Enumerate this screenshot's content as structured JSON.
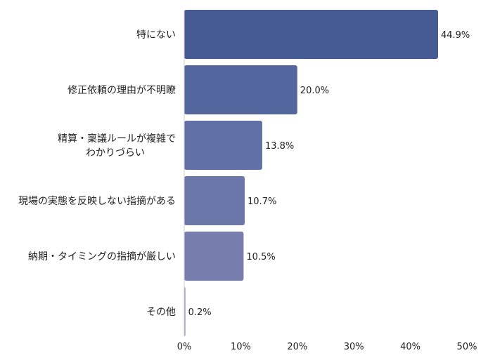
{
  "chart_data": {
    "type": "bar",
    "orientation": "horizontal",
    "title": "",
    "xlabel": "",
    "ylabel": "",
    "categories": [
      [
        "特にない"
      ],
      [
        "修正依頼の理由が不明瞭"
      ],
      [
        "精算・稟議ルールが複雑で",
        "わかりづらい"
      ],
      [
        "現場の実態を反映しない指摘がある"
      ],
      [
        "納期・タイミングの指摘が厳しい"
      ],
      [
        "その他"
      ]
    ],
    "values": [
      44.9,
      20.0,
      13.8,
      10.7,
      10.5,
      0.2
    ],
    "value_labels": [
      "44.9%",
      "20.0%",
      "13.8%",
      "10.7%",
      "10.5%",
      "0.2%"
    ],
    "xlim": [
      0,
      50
    ],
    "xticks": [
      0,
      10,
      20,
      30,
      40,
      50
    ],
    "xtick_labels": [
      "0%",
      "10%",
      "20%",
      "30%",
      "40%",
      "50%"
    ],
    "grid": false,
    "legend": "none",
    "colors": [
      "#465a94",
      "#53679e",
      "#6170a6",
      "#6b77a9",
      "#777eae",
      "#8c8fb4"
    ]
  }
}
